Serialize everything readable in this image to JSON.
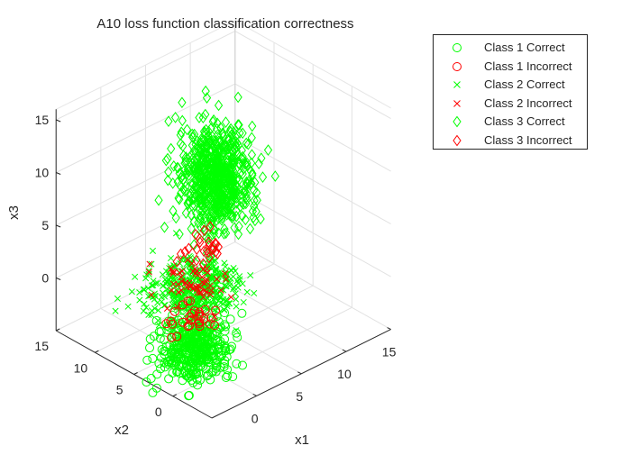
{
  "chart_data": {
    "type": "scatter",
    "title": "A10 loss function classification correctness",
    "xlabel": "x1",
    "ylabel": "x2",
    "zlabel": "x3",
    "xticks": [
      0,
      5,
      10,
      15
    ],
    "yticks": [
      0,
      5,
      10,
      15
    ],
    "zticks": [
      0,
      5,
      10,
      15
    ],
    "xlim": [
      -5,
      15
    ],
    "ylim": [
      -5,
      15
    ],
    "zlim": [
      -5,
      16
    ],
    "grid": true,
    "legend_position": "top-right outside",
    "series": [
      {
        "name": "Class 1 Correct",
        "marker": "circle",
        "color": "#00ff00",
        "center": [
          -1,
          2,
          -3
        ],
        "spread": [
          1.5,
          1.5,
          1.5
        ]
      },
      {
        "name": "Class 1 Incorrect",
        "marker": "circle",
        "color": "#ff0000",
        "center": [
          -1,
          2,
          0
        ],
        "spread": [
          1.0,
          1.0,
          0.6
        ]
      },
      {
        "name": "Class 2 Correct",
        "marker": "x",
        "color": "#00ff00",
        "center": [
          0,
          3,
          2
        ],
        "spread": [
          2.0,
          2.0,
          0.8
        ]
      },
      {
        "name": "Class 2 Incorrect",
        "marker": "x",
        "color": "#ff0000",
        "center": [
          0,
          3,
          2.5
        ],
        "spread": [
          1.5,
          1.5,
          0.6
        ]
      },
      {
        "name": "Class 3 Correct",
        "marker": "diamond",
        "color": "#00ff00",
        "center": [
          5,
          6,
          9
        ],
        "spread": [
          1.6,
          1.6,
          2.4
        ]
      },
      {
        "name": "Class 3 Incorrect",
        "marker": "diamond",
        "color": "#ff0000",
        "center": [
          2,
          4,
          4.5
        ],
        "spread": [
          1.0,
          1.0,
          0.4
        ]
      }
    ]
  }
}
